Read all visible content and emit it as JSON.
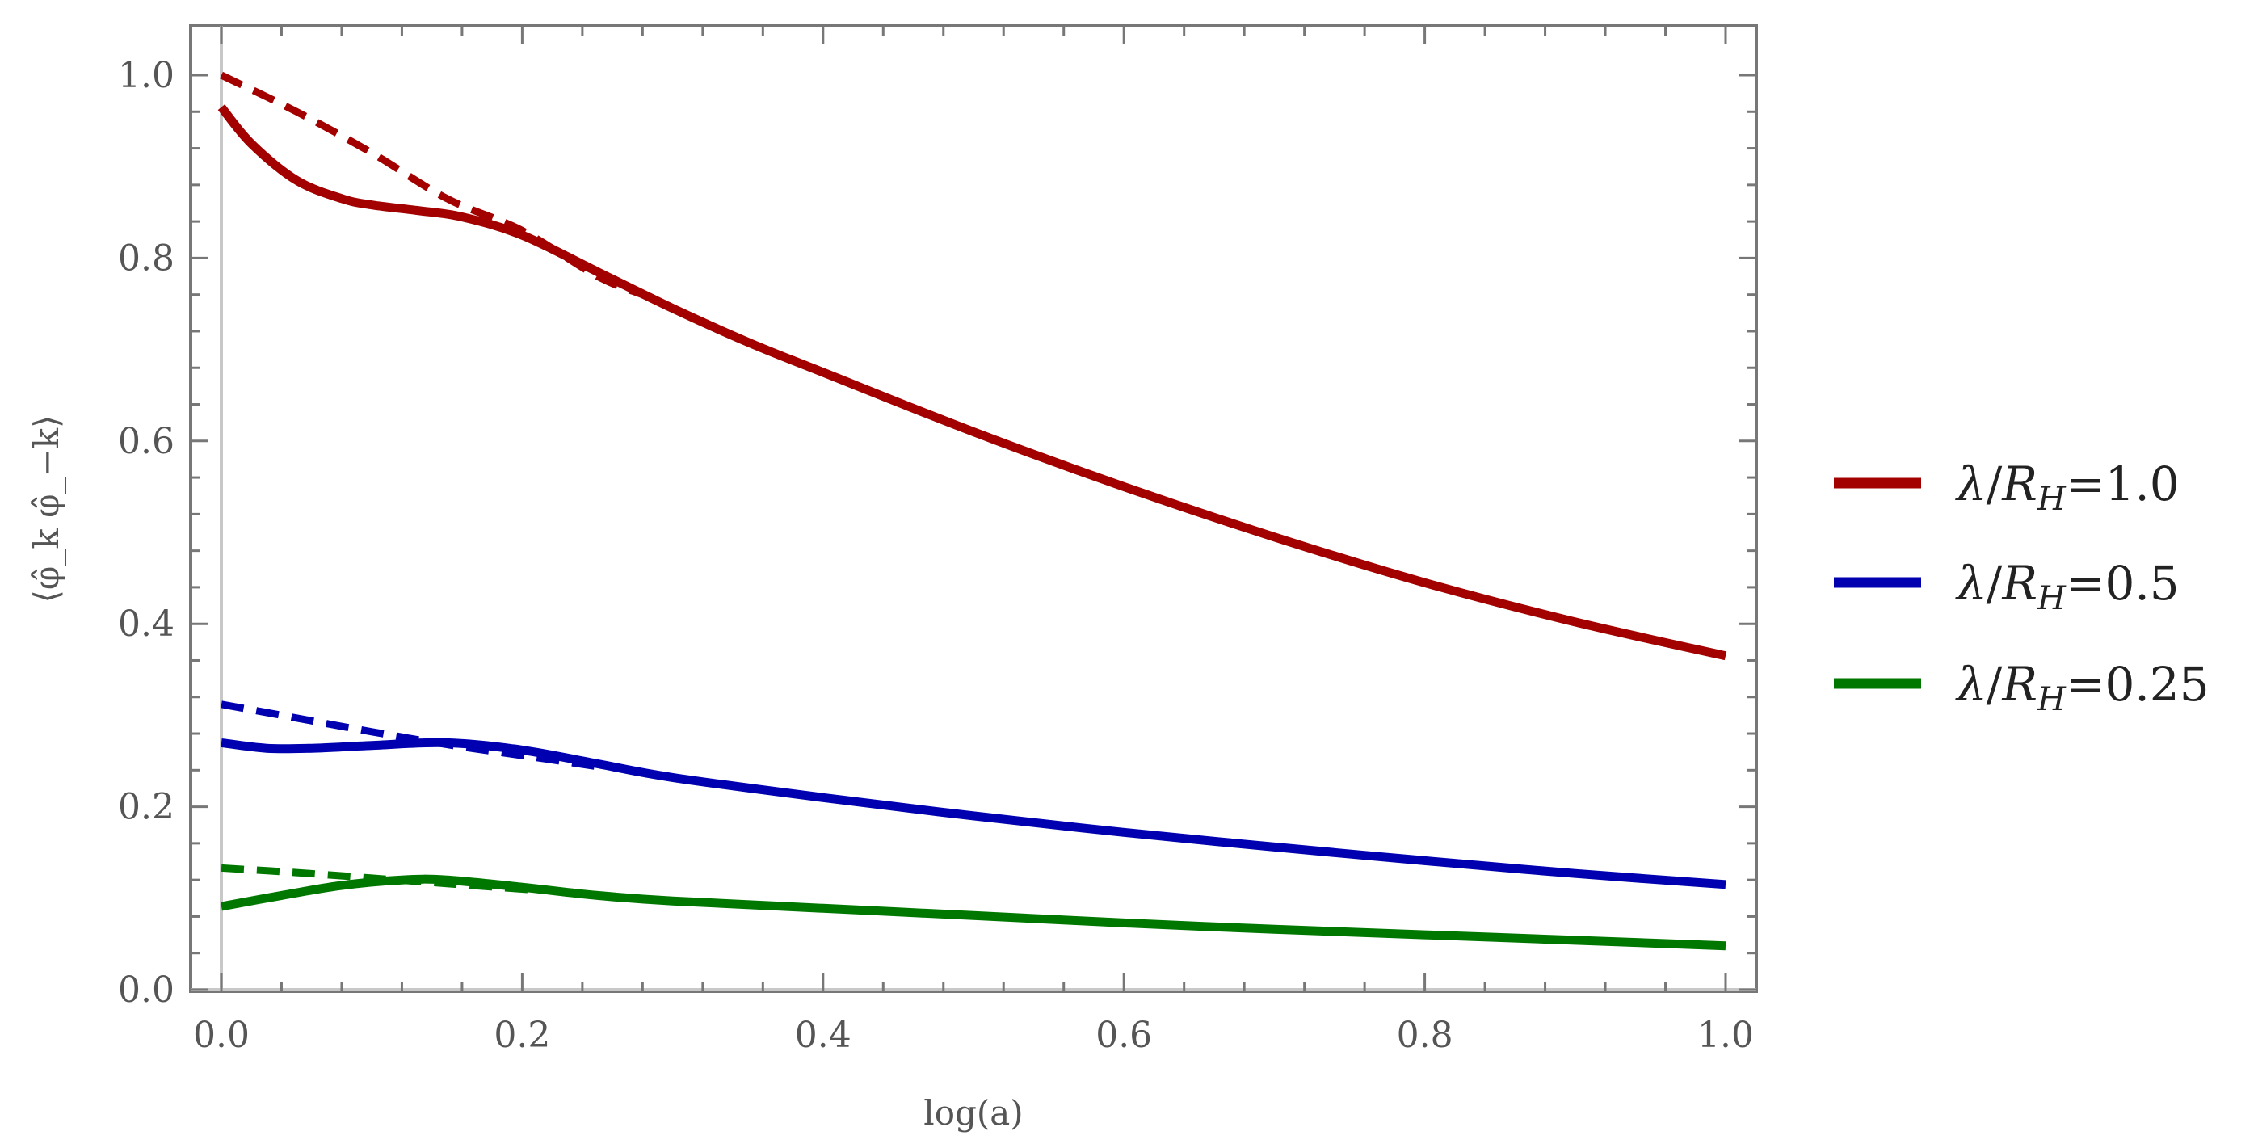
{
  "chart_data": {
    "type": "line",
    "title": "",
    "xlabel": "log(a)",
    "ylabel": "⟨φ̂_k φ̂_−k⟩",
    "xlim": [
      0.0,
      1.0
    ],
    "ylim": [
      0.0,
      1.0
    ],
    "x_ticks": [
      "0.0",
      "0.2",
      "0.4",
      "0.6",
      "0.8",
      "1.0"
    ],
    "y_ticks": [
      "0.0",
      "0.2",
      "0.4",
      "0.6",
      "0.8",
      "1.0"
    ],
    "grid": false,
    "legend_position": "right",
    "series": [
      {
        "name": "λ/R_H=1.0",
        "color": "#a30000",
        "style": "solid",
        "x": [
          0.0,
          0.02,
          0.05,
          0.08,
          0.1,
          0.13,
          0.16,
          0.2,
          0.25,
          0.3,
          0.35,
          0.4,
          0.5,
          0.6,
          0.7,
          0.8,
          0.9,
          1.0
        ],
        "y": [
          0.965,
          0.925,
          0.885,
          0.865,
          0.858,
          0.852,
          0.845,
          0.825,
          0.785,
          0.745,
          0.708,
          0.675,
          0.61,
          0.55,
          0.495,
          0.445,
          0.402,
          0.365
        ]
      },
      {
        "name": "λ/R_H=1.0 (dashed)",
        "color": "#a30000",
        "style": "dashed",
        "x": [
          0.0,
          0.05,
          0.1,
          0.15,
          0.2,
          0.25,
          0.28
        ],
        "y": [
          1.0,
          0.96,
          0.915,
          0.865,
          0.83,
          0.78,
          0.76
        ]
      },
      {
        "name": "λ/R_H=0.5",
        "color": "#0000b0",
        "style": "solid",
        "x": [
          0.0,
          0.03,
          0.06,
          0.1,
          0.15,
          0.2,
          0.25,
          0.3,
          0.4,
          0.5,
          0.6,
          0.7,
          0.8,
          0.9,
          1.0
        ],
        "y": [
          0.27,
          0.264,
          0.264,
          0.267,
          0.27,
          0.262,
          0.247,
          0.232,
          0.21,
          0.19,
          0.172,
          0.156,
          0.141,
          0.127,
          0.115
        ]
      },
      {
        "name": "λ/R_H=0.5 (dashed)",
        "color": "#0000b0",
        "style": "dashed",
        "x": [
          0.0,
          0.05,
          0.1,
          0.15,
          0.2,
          0.25
        ],
        "y": [
          0.312,
          0.297,
          0.282,
          0.268,
          0.256,
          0.244
        ]
      },
      {
        "name": "λ/R_H=0.25",
        "color": "#007800",
        "style": "solid",
        "x": [
          0.0,
          0.04,
          0.08,
          0.12,
          0.15,
          0.2,
          0.25,
          0.3,
          0.4,
          0.5,
          0.6,
          0.7,
          0.8,
          0.9,
          1.0
        ],
        "y": [
          0.091,
          0.103,
          0.114,
          0.12,
          0.12,
          0.112,
          0.103,
          0.097,
          0.089,
          0.081,
          0.073,
          0.066,
          0.06,
          0.054,
          0.048
        ]
      },
      {
        "name": "λ/R_H=0.25 (dashed)",
        "color": "#007800",
        "style": "dashed",
        "x": [
          0.0,
          0.05,
          0.1,
          0.15,
          0.2,
          0.23
        ],
        "y": [
          0.133,
          0.128,
          0.122,
          0.116,
          0.11,
          0.107
        ]
      }
    ],
    "legend": [
      {
        "prefix": "λ/",
        "var": "R",
        "sub": "H",
        "suffix": "=1.0",
        "color": "#a30000"
      },
      {
        "prefix": "λ/",
        "var": "R",
        "sub": "H",
        "suffix": "=0.5",
        "color": "#0000b0"
      },
      {
        "prefix": "λ/",
        "var": "R",
        "sub": "H",
        "suffix": "=0.25",
        "color": "#007800"
      }
    ]
  }
}
